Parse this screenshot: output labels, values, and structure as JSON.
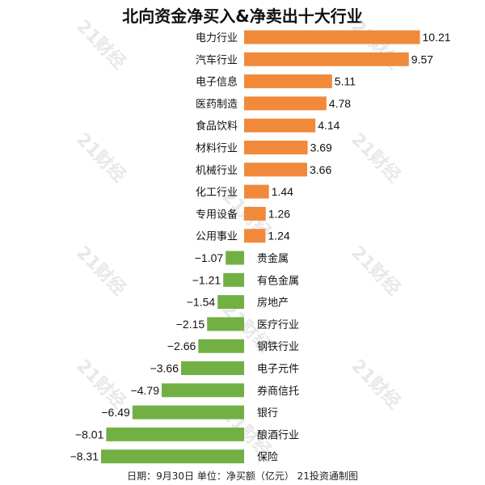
{
  "title": "北向资金净买入&净卖出十大行业",
  "footer": "日期：9月30日 单位：净买额（亿元） 21投资通制图",
  "watermark": "21财经",
  "colors": {
    "positive": "#f08a3a",
    "negative": "#72b043"
  },
  "chart_data": {
    "type": "bar",
    "orientation": "horizontal",
    "categories": [
      "电力行业",
      "汽车行业",
      "电子信息",
      "医药制造",
      "食品饮料",
      "材料行业",
      "机械行业",
      "化工行业",
      "专用设备",
      "公用事业",
      "贵金属",
      "有色金属",
      "房地产",
      "医疗行业",
      "钢铁行业",
      "电子元件",
      "券商信托",
      "银行",
      "酿酒行业",
      "保险"
    ],
    "values": [
      10.21,
      9.57,
      5.11,
      4.78,
      4.14,
      3.69,
      3.66,
      1.44,
      1.26,
      1.24,
      -1.07,
      -1.21,
      -1.54,
      -2.15,
      -2.66,
      -3.66,
      -4.79,
      -6.49,
      -8.01,
      -8.31
    ],
    "value_labels": [
      "10.21",
      "9.57",
      "5.11",
      "4.78",
      "4.14",
      "3.69",
      "3.66",
      "1.44",
      "1.26",
      "1.24",
      "−1.07",
      "−1.21",
      "−1.54",
      "−2.15",
      "−2.66",
      "−3.66",
      "−4.79",
      "−6.49",
      "−8.01",
      "−8.31"
    ],
    "title": "北向资金净买入&净卖出十大行业",
    "xlabel": "",
    "ylabel": "",
    "xlim": [
      -8.31,
      10.21
    ],
    "grid": false,
    "legend": "none"
  }
}
